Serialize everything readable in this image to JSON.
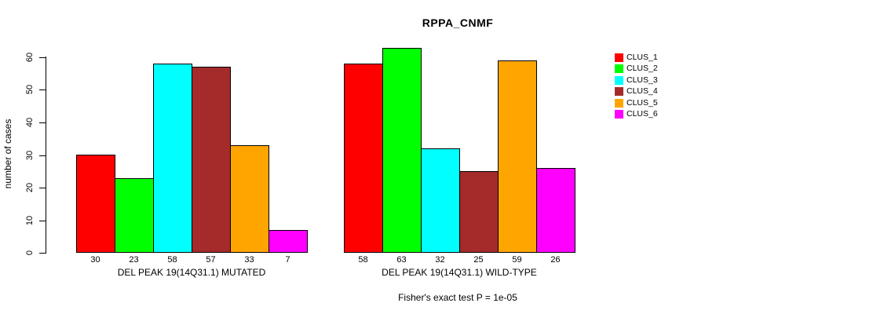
{
  "chart_data": {
    "type": "bar",
    "title": "RPPA_CNMF",
    "ylabel": "number of cases",
    "xlabel": "",
    "ylim": [
      0,
      60
    ],
    "yticks": [
      0,
      10,
      20,
      30,
      40,
      50,
      60
    ],
    "grid": false,
    "legend_position": "right",
    "categories": [
      "DEL PEAK 19(14Q31.1) MUTATED",
      "DEL PEAK 19(14Q31.1) WILD-TYPE"
    ],
    "series": [
      {
        "name": "CLUS_1",
        "color": "#ff0000",
        "values": [
          30,
          58
        ]
      },
      {
        "name": "CLUS_2",
        "color": "#00ff00",
        "values": [
          23,
          63
        ]
      },
      {
        "name": "CLUS_3",
        "color": "#00ffff",
        "values": [
          58,
          32
        ]
      },
      {
        "name": "CLUS_4",
        "color": "#a52a2a",
        "values": [
          57,
          25
        ]
      },
      {
        "name": "CLUS_5",
        "color": "#ffa500",
        "values": [
          33,
          59
        ]
      },
      {
        "name": "CLUS_6",
        "color": "#ff00ff",
        "values": [
          7,
          26
        ]
      }
    ],
    "value_labels_under_bars": true,
    "annotation": "Fisher's exact test P = 1e-05"
  }
}
